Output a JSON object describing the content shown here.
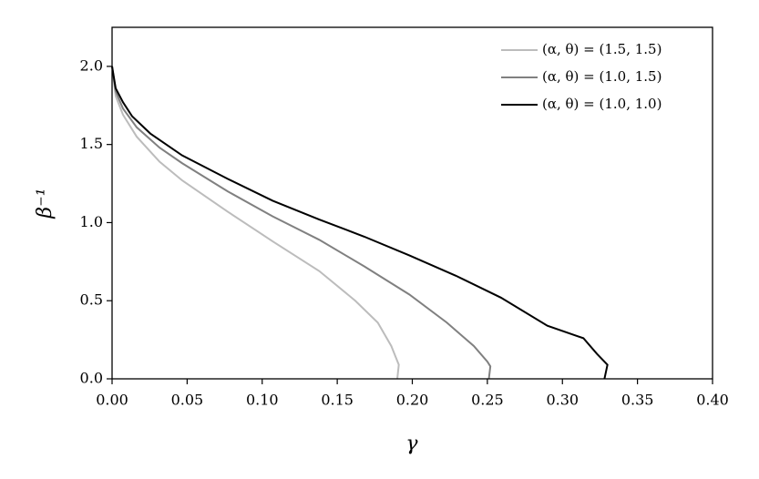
{
  "chart_data": {
    "type": "line",
    "x_label": "γ",
    "y_label": "β⁻¹",
    "series": [
      {
        "name": "(α, θ) = (1.5, 1.5)",
        "color": "#bcbcbc",
        "x": [
          0,
          0.0024,
          0.0073,
          0.0164,
          0.0316,
          0.0467,
          0.077,
          0.107,
          0.138,
          0.162,
          0.177,
          0.186,
          0.191,
          0.19
        ],
        "values": [
          2.0,
          1.81,
          1.69,
          1.55,
          1.39,
          1.27,
          1.07,
          0.88,
          0.69,
          0.5,
          0.36,
          0.21,
          0.09,
          0.0
        ]
      },
      {
        "name": "(α, θ) = (1.0, 1.5)",
        "color": "#808080",
        "x": [
          0,
          0.0024,
          0.0073,
          0.0164,
          0.0316,
          0.0467,
          0.077,
          0.107,
          0.138,
          0.168,
          0.198,
          0.223,
          0.241,
          0.25,
          0.252,
          0.251
        ],
        "values": [
          2.0,
          1.84,
          1.73,
          1.61,
          1.48,
          1.38,
          1.2,
          1.04,
          0.89,
          0.72,
          0.54,
          0.36,
          0.21,
          0.11,
          0.08,
          0.0
        ]
      },
      {
        "name": "(α, θ) = (1.0, 1.0)",
        "color": "#000000",
        "x": [
          0,
          0.0024,
          0.0073,
          0.0134,
          0.0255,
          0.0467,
          0.077,
          0.107,
          0.138,
          0.168,
          0.198,
          0.229,
          0.259,
          0.29,
          0.314,
          0.323,
          0.33,
          0.328
        ],
        "values": [
          2.0,
          1.86,
          1.77,
          1.68,
          1.57,
          1.43,
          1.28,
          1.14,
          1.02,
          0.91,
          0.79,
          0.66,
          0.52,
          0.34,
          0.26,
          0.16,
          0.09,
          0.0
        ]
      }
    ],
    "xlim": [
      0,
      0.4
    ],
    "ylim": [
      0,
      2.25
    ],
    "xticks": [
      {
        "value": 0,
        "label": "0.00"
      },
      {
        "value": 0.05,
        "label": "0.05"
      },
      {
        "value": 0.1,
        "label": "0.10"
      },
      {
        "value": 0.15,
        "label": "0.15"
      },
      {
        "value": 0.2,
        "label": "0.20"
      },
      {
        "value": 0.25,
        "label": "0.25"
      },
      {
        "value": 0.3,
        "label": "0.30"
      },
      {
        "value": 0.35,
        "label": "0.35"
      },
      {
        "value": 0.4,
        "label": "0.40"
      }
    ],
    "yticks": [
      {
        "value": 0,
        "label": "0.0"
      },
      {
        "value": 0.5,
        "label": "0.5"
      },
      {
        "value": 1,
        "label": "1.0"
      },
      {
        "value": 1.5,
        "label": "1.5"
      },
      {
        "value": 2,
        "label": "2.0"
      }
    ],
    "grid": false,
    "legend": "upper right"
  }
}
